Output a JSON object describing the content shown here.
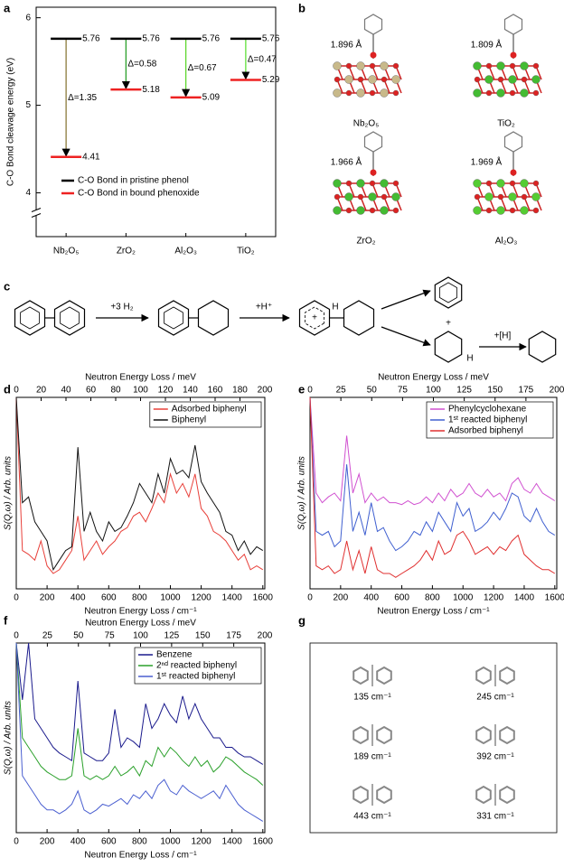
{
  "chart_data": [
    {
      "type": "level",
      "ylabel": "C-O Bond cleavage energy (eV)",
      "categories": [
        "Nb₂O₅",
        "ZrO₂",
        "Al₂O₃",
        "TiO₂"
      ],
      "colors": [
        "#8c7a3c",
        "#2ca02c",
        "#5fd62e",
        "#5fe03a"
      ],
      "series": [
        {
          "name": "C-O Bond in pristine phenol",
          "color": "#000000",
          "values": [
            5.76,
            5.76,
            5.76,
            5.76
          ]
        },
        {
          "name": "C-O Bond in bound phenoxide",
          "color": "#ee2222",
          "values": [
            4.41,
            5.18,
            5.09,
            5.29
          ]
        }
      ],
      "deltas": [
        "Δ=1.35",
        "Δ=0.58",
        "Δ=0.67",
        "Δ=0.47"
      ],
      "ylim": [
        3.5,
        6.12
      ],
      "yticks": [
        4,
        5,
        6
      ],
      "axis_break": true,
      "legend": "lower left"
    },
    {
      "type": "spectrum",
      "xlabel": "Neutron Energy Loss / cm⁻¹",
      "x2label": "Neutron Energy Loss / meV",
      "ylabel": "S(Q,ω) / Arb. units",
      "x": [
        0,
        40,
        80,
        120,
        160,
        200,
        240,
        280,
        320,
        360,
        400,
        440,
        480,
        520,
        560,
        600,
        640,
        680,
        720,
        760,
        800,
        840,
        880,
        920,
        960,
        1000,
        1040,
        1080,
        1120,
        1160,
        1200,
        1240,
        1280,
        1320,
        1360,
        1400,
        1440,
        1480,
        1520,
        1560,
        1600
      ],
      "xlim": [
        0,
        1613
      ],
      "xticks": [
        0,
        200,
        400,
        600,
        800,
        1000,
        1200,
        1400,
        1600
      ],
      "x2lim": [
        0,
        200
      ],
      "x2ticks": [
        0,
        20,
        40,
        60,
        80,
        100,
        120,
        140,
        160,
        180,
        200
      ],
      "ylim": [
        0,
        1
      ],
      "legend": "upper right",
      "series": [
        {
          "name": "Adsorbed biphenyl",
          "color": "#e8403a",
          "values": [
            1.0,
            0.2,
            0.18,
            0.15,
            0.25,
            0.12,
            0.08,
            0.1,
            0.15,
            0.2,
            0.38,
            0.15,
            0.2,
            0.25,
            0.18,
            0.22,
            0.25,
            0.3,
            0.32,
            0.38,
            0.4,
            0.35,
            0.42,
            0.5,
            0.45,
            0.6,
            0.5,
            0.55,
            0.48,
            0.6,
            0.42,
            0.38,
            0.3,
            0.28,
            0.25,
            0.2,
            0.15,
            0.18,
            0.1,
            0.12,
            0.1
          ]
        },
        {
          "name": "Biphenyl",
          "color": "#111111",
          "values": [
            1.0,
            0.45,
            0.48,
            0.35,
            0.3,
            0.25,
            0.1,
            0.15,
            0.2,
            0.22,
            0.74,
            0.3,
            0.4,
            0.3,
            0.25,
            0.35,
            0.3,
            0.32,
            0.38,
            0.45,
            0.55,
            0.5,
            0.45,
            0.6,
            0.5,
            0.68,
            0.6,
            0.62,
            0.58,
            0.75,
            0.56,
            0.5,
            0.45,
            0.4,
            0.3,
            0.28,
            0.2,
            0.25,
            0.18,
            0.22,
            0.2
          ]
        }
      ]
    },
    {
      "type": "spectrum",
      "xlabel": "Neutron Energy Loss / cm⁻¹",
      "x2label": "Neutron Energy Loss / meV",
      "ylabel": "S(Q,ω) / Arb. units",
      "x": [
        0,
        40,
        80,
        120,
        160,
        200,
        240,
        280,
        320,
        360,
        400,
        440,
        480,
        520,
        560,
        600,
        640,
        680,
        720,
        760,
        800,
        840,
        880,
        920,
        960,
        1000,
        1040,
        1080,
        1120,
        1160,
        1200,
        1240,
        1280,
        1320,
        1360,
        1400,
        1440,
        1480,
        1520,
        1560,
        1600
      ],
      "xlim": [
        0,
        1613
      ],
      "xticks": [
        0,
        200,
        400,
        600,
        800,
        1000,
        1200,
        1400,
        1600
      ],
      "x2lim": [
        0,
        200
      ],
      "x2ticks": [
        0,
        25,
        50,
        75,
        100,
        125,
        150,
        175,
        200
      ],
      "ylim": [
        0,
        1
      ],
      "legend": "upper right",
      "series": [
        {
          "name": "Phenylcyclohexane",
          "color": "#d050d0",
          "values": [
            1.0,
            0.5,
            0.45,
            0.48,
            0.5,
            0.46,
            0.8,
            0.5,
            0.6,
            0.45,
            0.5,
            0.46,
            0.48,
            0.45,
            0.45,
            0.44,
            0.46,
            0.44,
            0.45,
            0.48,
            0.45,
            0.5,
            0.46,
            0.52,
            0.48,
            0.5,
            0.55,
            0.5,
            0.48,
            0.52,
            0.48,
            0.5,
            0.46,
            0.55,
            0.58,
            0.52,
            0.5,
            0.55,
            0.5,
            0.48,
            0.46
          ]
        },
        {
          "name": "1ˢᵗ reacted biphenyl",
          "color": "#4060d0",
          "values": [
            1.0,
            0.3,
            0.28,
            0.3,
            0.22,
            0.25,
            0.65,
            0.3,
            0.4,
            0.28,
            0.45,
            0.3,
            0.32,
            0.25,
            0.2,
            0.22,
            0.25,
            0.3,
            0.28,
            0.35,
            0.3,
            0.4,
            0.35,
            0.3,
            0.45,
            0.38,
            0.42,
            0.3,
            0.32,
            0.35,
            0.4,
            0.36,
            0.42,
            0.5,
            0.48,
            0.38,
            0.35,
            0.42,
            0.35,
            0.3,
            0.28
          ]
        },
        {
          "name": "Adsorbed biphenyl",
          "color": "#e03030",
          "values": [
            1.0,
            0.12,
            0.1,
            0.12,
            0.08,
            0.1,
            0.25,
            0.1,
            0.2,
            0.08,
            0.22,
            0.1,
            0.08,
            0.08,
            0.06,
            0.08,
            0.1,
            0.12,
            0.15,
            0.2,
            0.15,
            0.25,
            0.18,
            0.2,
            0.28,
            0.3,
            0.25,
            0.18,
            0.2,
            0.22,
            0.18,
            0.22,
            0.2,
            0.25,
            0.28,
            0.18,
            0.15,
            0.12,
            0.1,
            0.1,
            0.08
          ]
        }
      ]
    },
    {
      "type": "spectrum",
      "xlabel": "Neutron Energy Loss / cm⁻¹",
      "x2label": "Neutron Energy Loss / meV",
      "ylabel": "S(Q,ω) / Arb. units",
      "x": [
        0,
        40,
        80,
        120,
        160,
        200,
        240,
        280,
        320,
        360,
        400,
        440,
        480,
        520,
        560,
        600,
        640,
        680,
        720,
        760,
        800,
        840,
        880,
        920,
        960,
        1000,
        1040,
        1080,
        1120,
        1160,
        1200,
        1240,
        1280,
        1320,
        1360,
        1400,
        1440,
        1480,
        1520,
        1560,
        1600
      ],
      "xlim": [
        0,
        1613
      ],
      "xticks": [
        0,
        200,
        400,
        600,
        800,
        1000,
        1200,
        1400,
        1600
      ],
      "x2lim": [
        0,
        200
      ],
      "x2ticks": [
        0,
        25,
        50,
        75,
        100,
        125,
        150,
        175,
        200
      ],
      "ylim": [
        0,
        1
      ],
      "legend": "upper right",
      "series": [
        {
          "name": "Benzene",
          "color": "#1a1a8c",
          "values": [
            1.0,
            0.7,
            1.0,
            0.6,
            0.55,
            0.5,
            0.45,
            0.42,
            0.4,
            0.38,
            0.8,
            0.42,
            0.4,
            0.38,
            0.38,
            0.42,
            0.65,
            0.45,
            0.5,
            0.48,
            0.45,
            0.68,
            0.55,
            0.6,
            0.68,
            0.62,
            0.58,
            0.72,
            0.6,
            0.68,
            0.6,
            0.55,
            0.5,
            0.5,
            0.45,
            0.45,
            0.42,
            0.4,
            0.4,
            0.38,
            0.36
          ]
        },
        {
          "name": "2ⁿᵈ reacted biphenyl",
          "color": "#2aa02a",
          "values": [
            1.0,
            0.5,
            0.45,
            0.4,
            0.35,
            0.32,
            0.3,
            0.28,
            0.28,
            0.3,
            0.55,
            0.3,
            0.28,
            0.3,
            0.28,
            0.3,
            0.35,
            0.3,
            0.32,
            0.35,
            0.3,
            0.38,
            0.35,
            0.45,
            0.4,
            0.45,
            0.42,
            0.38,
            0.35,
            0.4,
            0.35,
            0.38,
            0.32,
            0.35,
            0.4,
            0.38,
            0.35,
            0.32,
            0.3,
            0.28,
            0.25
          ]
        },
        {
          "name": "1ˢᵗ reacted biphenyl",
          "color": "#4a5fd0",
          "values": [
            1.0,
            0.3,
            0.25,
            0.2,
            0.15,
            0.12,
            0.12,
            0.1,
            0.12,
            0.15,
            0.22,
            0.12,
            0.1,
            0.12,
            0.15,
            0.14,
            0.16,
            0.18,
            0.15,
            0.2,
            0.18,
            0.22,
            0.18,
            0.25,
            0.28,
            0.22,
            0.2,
            0.25,
            0.22,
            0.2,
            0.18,
            0.2,
            0.22,
            0.18,
            0.25,
            0.2,
            0.15,
            0.12,
            0.1,
            0.08,
            0.06
          ]
        }
      ]
    }
  ],
  "panel_labels": [
    "a",
    "b",
    "c",
    "d",
    "e",
    "f",
    "g"
  ],
  "panel_b": {
    "structures": [
      {
        "label": "Nb₂O₅",
        "distance": "1.896 Å"
      },
      {
        "label": "TiO₂",
        "distance": "1.809 Å"
      },
      {
        "label": "ZrO₂",
        "distance": "1.966 Å"
      },
      {
        "label": "Al₂O₃",
        "distance": "1.969 Å"
      }
    ]
  },
  "panel_c": {
    "reagents": [
      "+3 H₂",
      "+H⁺",
      "+[H]"
    ],
    "atoms": [
      "H",
      "H"
    ],
    "charges": [
      "+",
      "+"
    ]
  },
  "panel_g": {
    "modes": [
      "135 cm⁻¹",
      "245 cm⁻¹",
      "189 cm⁻¹",
      "392 cm⁻¹",
      "443 cm⁻¹",
      "331 cm⁻¹"
    ]
  }
}
